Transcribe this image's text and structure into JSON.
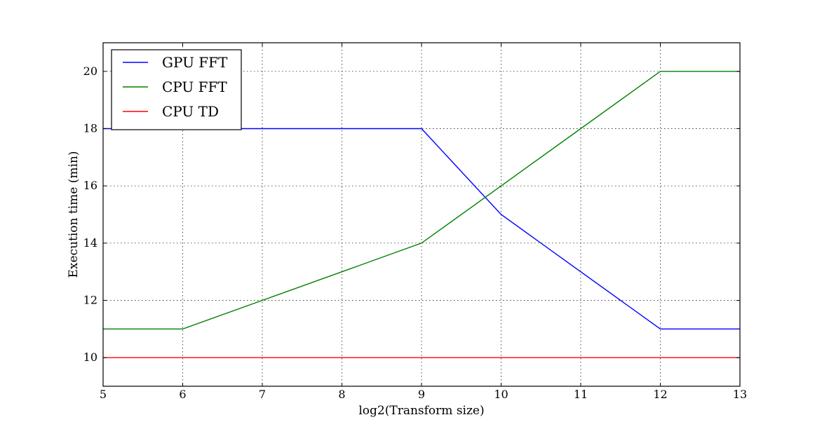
{
  "chart_data": {
    "type": "line",
    "xlabel": "log2(Transform size)",
    "ylabel": "Execution time (min)",
    "xlim": [
      5,
      13
    ],
    "ylim": [
      9,
      21
    ],
    "xticks": [
      5,
      6,
      7,
      8,
      9,
      10,
      11,
      12,
      13
    ],
    "yticks": [
      10,
      12,
      14,
      16,
      18,
      20
    ],
    "grid": true,
    "legend_position": "top-left",
    "x": [
      5,
      6,
      7,
      8,
      9,
      10,
      11,
      12,
      13
    ],
    "series": [
      {
        "name": "GPU FFT",
        "color": "#0000ff",
        "values": [
          18,
          18,
          18,
          18,
          18,
          15,
          13,
          11,
          11
        ]
      },
      {
        "name": "CPU FFT",
        "color": "#008000",
        "values": [
          11,
          11,
          12,
          13,
          14,
          16,
          18,
          20,
          20
        ]
      },
      {
        "name": "CPU TD",
        "color": "#ff0000",
        "values": [
          10,
          10,
          10,
          10,
          10,
          10,
          10,
          10,
          10
        ]
      }
    ]
  }
}
